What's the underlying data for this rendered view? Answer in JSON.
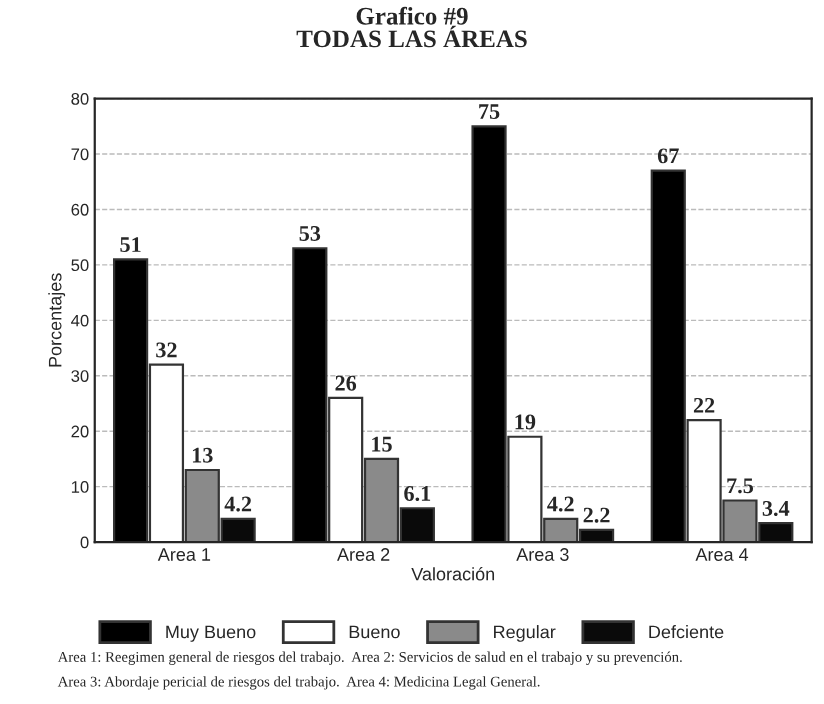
{
  "chart_data": {
    "type": "bar",
    "title": "Grafico #9\nTODAS LAS ÁREAS",
    "xlabel": "Valoración",
    "ylabel": "Porcentajes",
    "categories": [
      "Area 1",
      "Area 2",
      "Area 3",
      "Area 4"
    ],
    "series": [
      {
        "name": "Muy Bueno",
        "color": "#000000",
        "values": [
          51,
          53,
          75,
          67
        ]
      },
      {
        "name": "Bueno",
        "color": "#ffffff",
        "values": [
          32,
          26,
          19,
          22
        ]
      },
      {
        "name": "Regular",
        "color": "#8a8a8a",
        "values": [
          13,
          15,
          4.2,
          7.5
        ]
      },
      {
        "name": "Defciente",
        "color": "#0a0a0a",
        "values": [
          4.2,
          6.1,
          2.2,
          3.4
        ]
      }
    ],
    "ylim": [
      0,
      80
    ],
    "yticks": [
      0,
      10,
      20,
      30,
      40,
      50,
      60,
      70,
      80
    ],
    "grid": "y",
    "legend": "bottom",
    "data_labels": true,
    "annotations": [
      "Area 1: Reegimen general de riesgos del trabajo.  Area 2: Servicios de salud en el trabajo y su prevención.",
      "Area 3: Abordaje pericial de riesgos del trabajo.  Area 4: Medicina Legal General."
    ]
  }
}
